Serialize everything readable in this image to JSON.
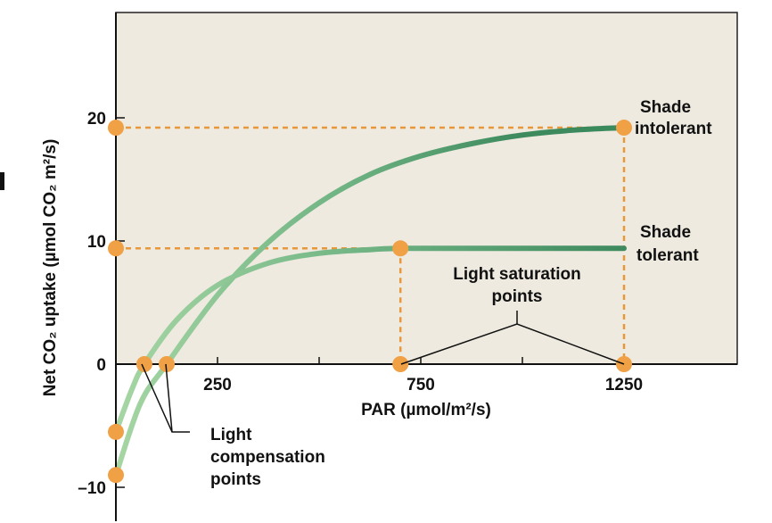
{
  "chart_data": {
    "type": "line",
    "xlabel": "PAR (µmol/m²/s)",
    "ylabel": "Net CO₂ uptake (µmol CO₂ m²/s)",
    "xlim": [
      0,
      1500
    ],
    "ylim": [
      -12,
      30
    ],
    "x_ticks": [
      250,
      750,
      1250
    ],
    "y_ticks": [
      -10,
      0,
      10,
      20
    ],
    "x_tick_labels": [
      "250",
      "750",
      "1250"
    ],
    "y_tick_labels": [
      "–10",
      "0",
      "10",
      "20"
    ],
    "grid": false,
    "series": [
      {
        "name": "Shade intolerant",
        "color": "#3d8a5e",
        "x": [
          0,
          60,
          125,
          250,
          375,
          500,
          625,
          750,
          875,
          1000,
          1125,
          1250
        ],
        "y": [
          -9,
          -3.2,
          0,
          5.6,
          9.9,
          13.1,
          15.4,
          16.9,
          17.9,
          18.6,
          19.0,
          19.2
        ],
        "compensation_point": {
          "x": 125,
          "y": 0
        },
        "saturation_point": {
          "x": 1250,
          "y": 19.2
        }
      },
      {
        "name": "Shade tolerant",
        "color": "#3d8a5e",
        "x": [
          0,
          40,
          70,
          150,
          250,
          375,
          500,
          625,
          700,
          750,
          1000,
          1250
        ],
        "y": [
          -5.5,
          -2,
          0,
          3.6,
          6.4,
          8.2,
          9.0,
          9.3,
          9.4,
          9.4,
          9.4,
          9.4
        ],
        "compensation_point": {
          "x": 70,
          "y": 0
        },
        "saturation_point": {
          "x": 700,
          "y": 9.4
        }
      }
    ],
    "y_intercepts": [
      -9,
      -5.5
    ],
    "annotations": {
      "shade_intolerant": [
        "Shade",
        "intolerant"
      ],
      "shade_tolerant": [
        "Shade",
        "tolerant"
      ],
      "saturation": [
        "Light saturation",
        "points"
      ],
      "compensation": [
        "Light",
        "compensation",
        "points"
      ]
    },
    "colors": {
      "plot_bg": "#eeeae0",
      "curve_dark": "#3d8a5e",
      "curve_light": "#a6d6a4",
      "marker": "#f0a045",
      "guide": "#e8973a"
    }
  }
}
